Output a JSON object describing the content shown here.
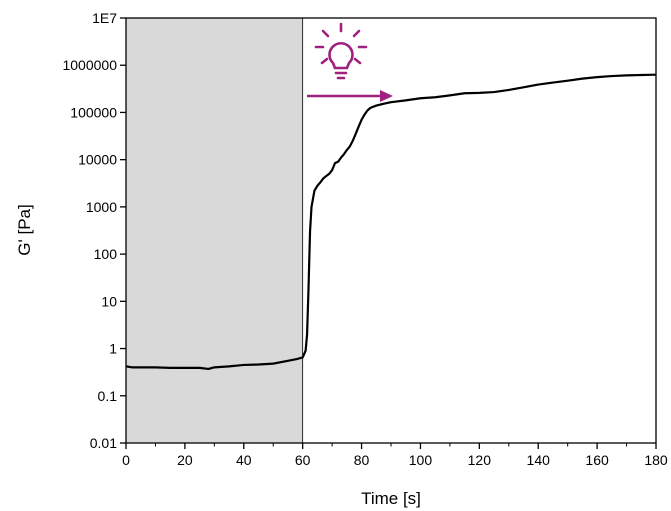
{
  "chart_data": {
    "type": "line",
    "xlabel": "Time [s]",
    "ylabel": "G' [Pa]",
    "xlim": [
      0,
      180
    ],
    "ylim": [
      0.01,
      10000000
    ],
    "yscale": "log",
    "grid": false,
    "x_ticks": [
      0,
      20,
      40,
      60,
      80,
      100,
      120,
      140,
      160,
      180
    ],
    "x_tick_labels": [
      "0",
      "20",
      "40",
      "60",
      "80",
      "100",
      "120",
      "140",
      "160",
      "180"
    ],
    "y_ticks": [
      0.01,
      0.1,
      1,
      10,
      100,
      1000,
      10000,
      100000,
      1000000,
      10000000
    ],
    "y_tick_labels": [
      "0.01",
      "0.1",
      "1",
      "10",
      "100",
      "1000",
      "10000",
      "100000",
      "1000000",
      "1E7"
    ],
    "shaded_region": {
      "x": [
        0,
        60
      ],
      "color": "#d9d9d9"
    },
    "annotation": {
      "icon": "light-bulb-icon",
      "arrow": "right-arrow-icon",
      "color": "#a0207f"
    },
    "series": [
      {
        "color": "#000000",
        "x": [
          0,
          2,
          5,
          10,
          15,
          20,
          25,
          28,
          30,
          35,
          40,
          45,
          50,
          55,
          58,
          60,
          61,
          61.5,
          62,
          62.5,
          63,
          64,
          65,
          66,
          67,
          68,
          69,
          70,
          71,
          72,
          73,
          74,
          75,
          76,
          77,
          78,
          79,
          80,
          81,
          82,
          83,
          85,
          88,
          90,
          95,
          100,
          105,
          110,
          115,
          120,
          125,
          130,
          135,
          140,
          145,
          150,
          155,
          160,
          165,
          170,
          175,
          180
        ],
        "y": [
          0.42,
          0.4,
          0.4,
          0.4,
          0.39,
          0.39,
          0.39,
          0.37,
          0.4,
          0.42,
          0.45,
          0.46,
          0.48,
          0.55,
          0.6,
          0.65,
          0.9,
          2,
          20,
          300,
          1000,
          2200,
          2800,
          3300,
          4000,
          4500,
          5000,
          6000,
          8500,
          9000,
          11000,
          13000,
          16000,
          19000,
          25000,
          35000,
          50000,
          70000,
          90000,
          110000,
          125000,
          140000,
          155000,
          165000,
          180000,
          200000,
          210000,
          230000,
          255000,
          260000,
          270000,
          300000,
          340000,
          390000,
          430000,
          470000,
          520000,
          560000,
          590000,
          610000,
          620000,
          630000
        ]
      }
    ]
  }
}
